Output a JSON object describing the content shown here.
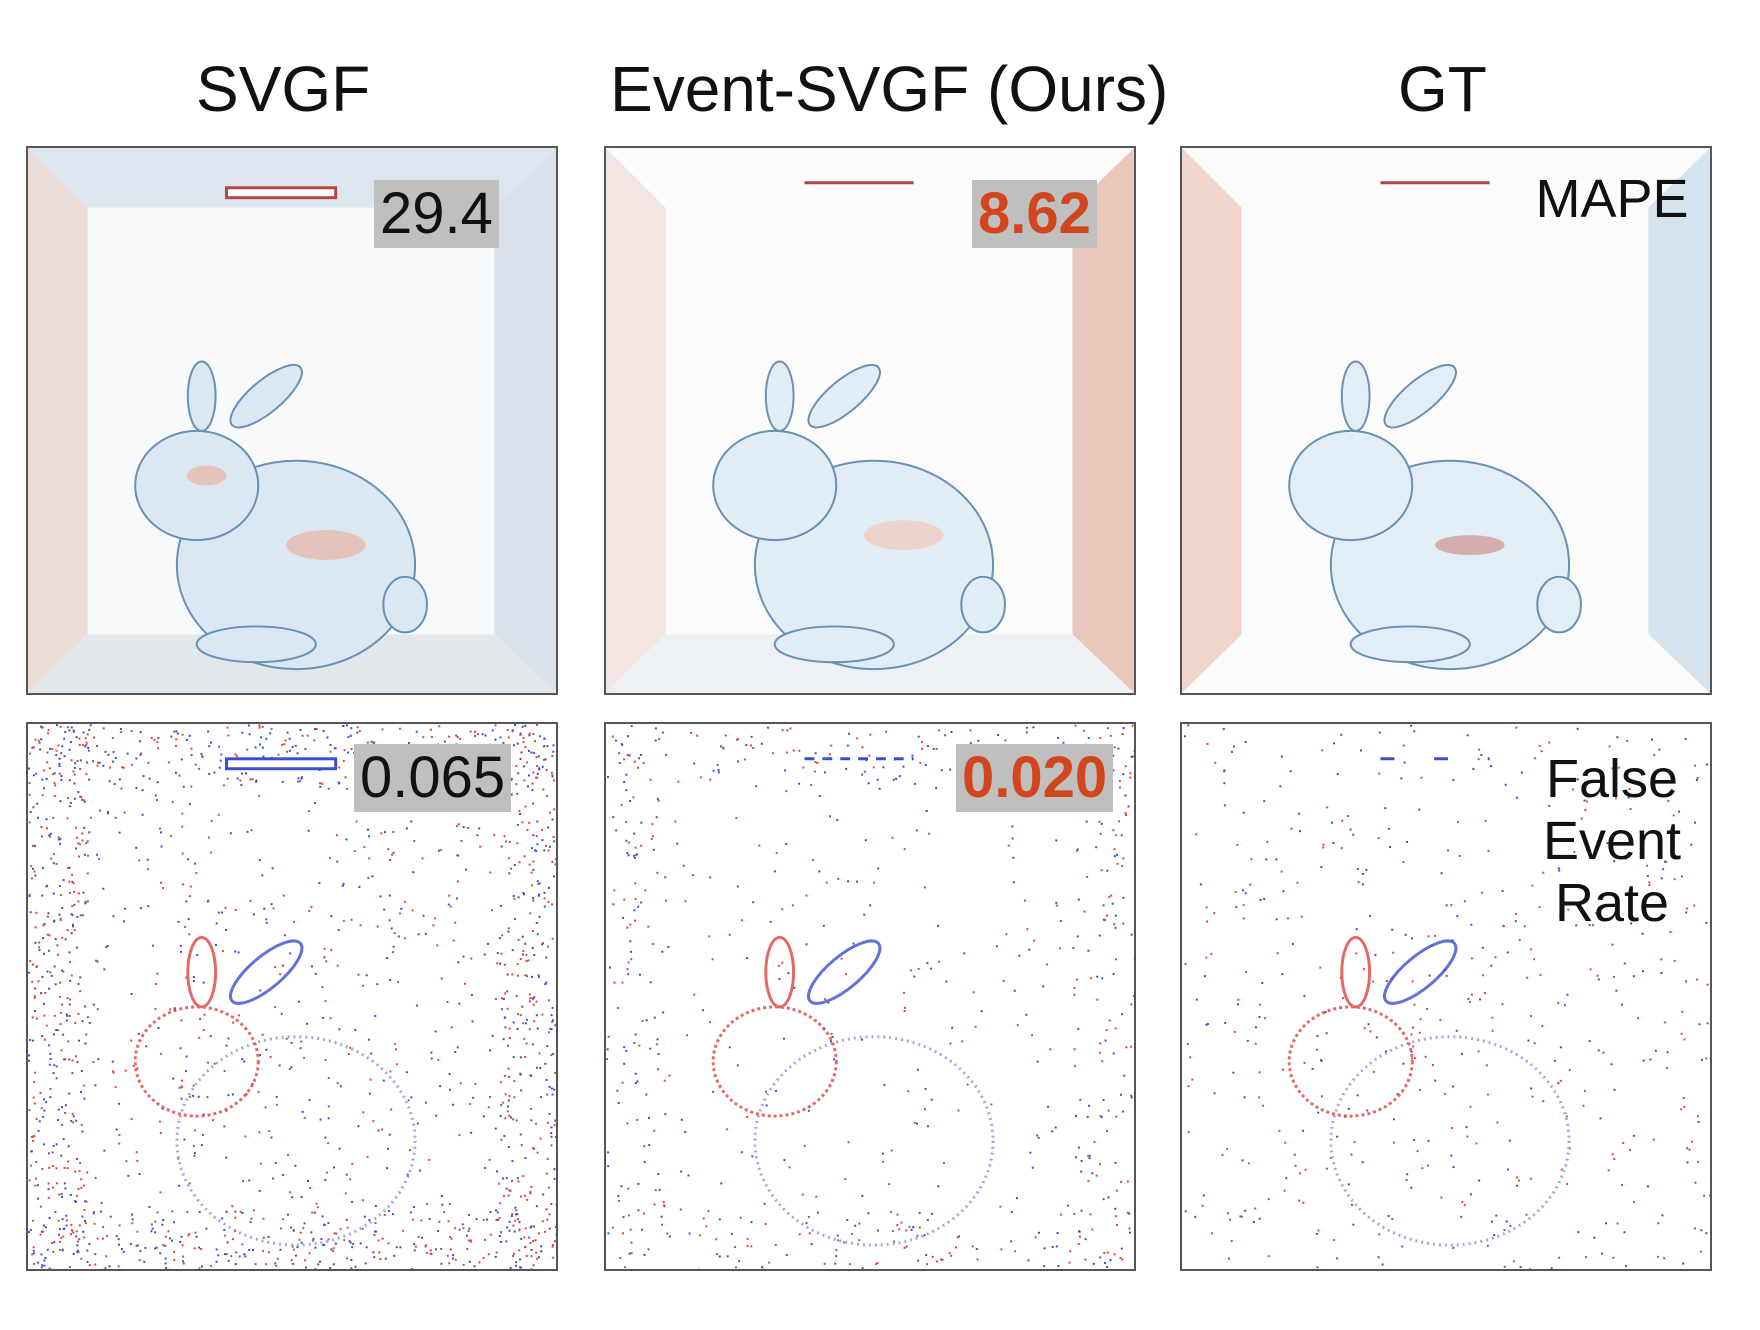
{
  "columns": [
    "SVGF",
    "Event-SVGF (Ours)",
    "GT"
  ],
  "rows": {
    "mape": {
      "label": "MAPE",
      "scores": [
        "29.4",
        "8.62"
      ]
    },
    "fer": {
      "label_lines": [
        "False",
        "Event",
        "Rate"
      ],
      "scores": [
        "0.065",
        "0.020"
      ]
    }
  },
  "colors": {
    "highlight": "#d2461e",
    "score_bg": "#bfbfbf",
    "positive": "#e0433a",
    "negative": "#3a4fd0"
  }
}
